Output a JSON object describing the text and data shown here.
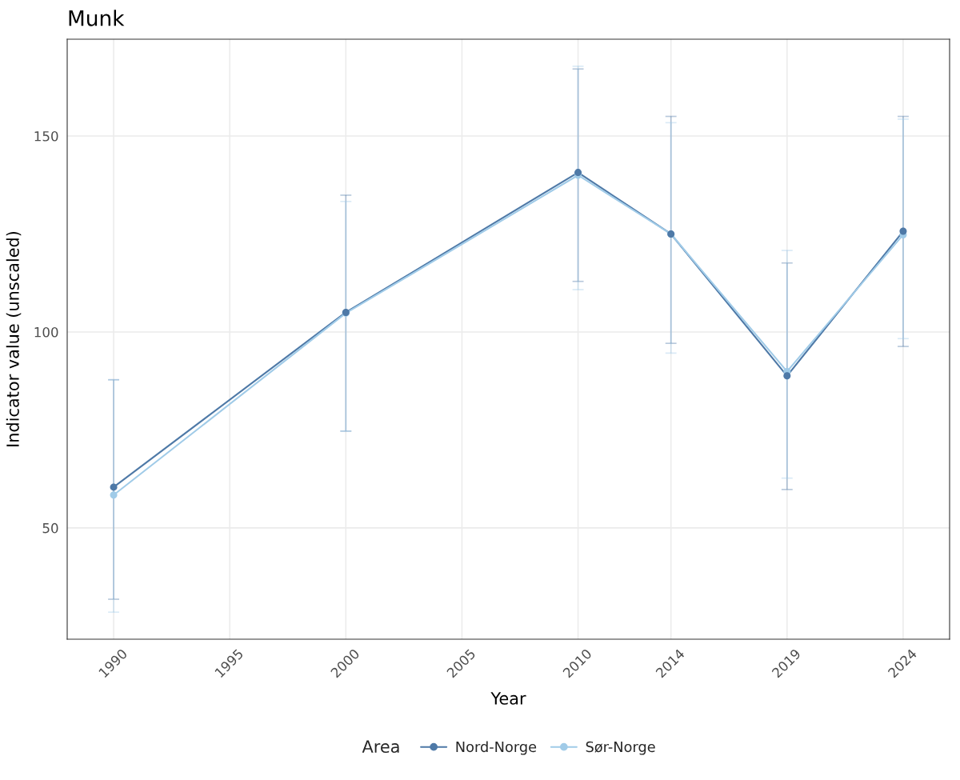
{
  "chart_data": {
    "type": "line",
    "title": "Munk",
    "xlabel": "Year",
    "ylabel": "Indicator value (unscaled)",
    "legend_title": "Area",
    "x": [
      1990,
      2000,
      2010,
      2014,
      2019,
      2024
    ],
    "series": [
      {
        "name": "Nord-Norge",
        "color": "#4e79a7",
        "values": [
          60.4,
          105.0,
          140.7,
          125.0,
          88.8,
          125.7
        ],
        "errors": [
          [
            31.8,
            87.8
          ],
          [
            74.7,
            134.9
          ],
          [
            112.9,
            167.1
          ],
          [
            97.1,
            155.0
          ],
          [
            59.8,
            117.6
          ],
          [
            96.3,
            155.0
          ]
        ]
      },
      {
        "name": "Sør-Norge",
        "color": "#a0cbe8",
        "values": [
          58.4,
          104.8,
          140.0,
          125.0,
          89.9,
          124.8
        ],
        "errors": [
          [
            28.5,
            87.8
          ],
          [
            74.7,
            133.3
          ],
          [
            110.8,
            167.8
          ],
          [
            94.6,
            153.4
          ],
          [
            62.7,
            120.8
          ],
          [
            98.3,
            154.3
          ]
        ]
      }
    ],
    "xlim": [
      1988,
      2026
    ],
    "ylim": [
      21.6,
      174.7
    ],
    "xticks": [
      1990,
      1995,
      2000,
      2005,
      2010,
      2014,
      2019,
      2024
    ],
    "yticks": [
      50,
      100,
      150
    ],
    "grid": true,
    "legend": "bottom",
    "marker": "circle",
    "line_style": "solid"
  }
}
